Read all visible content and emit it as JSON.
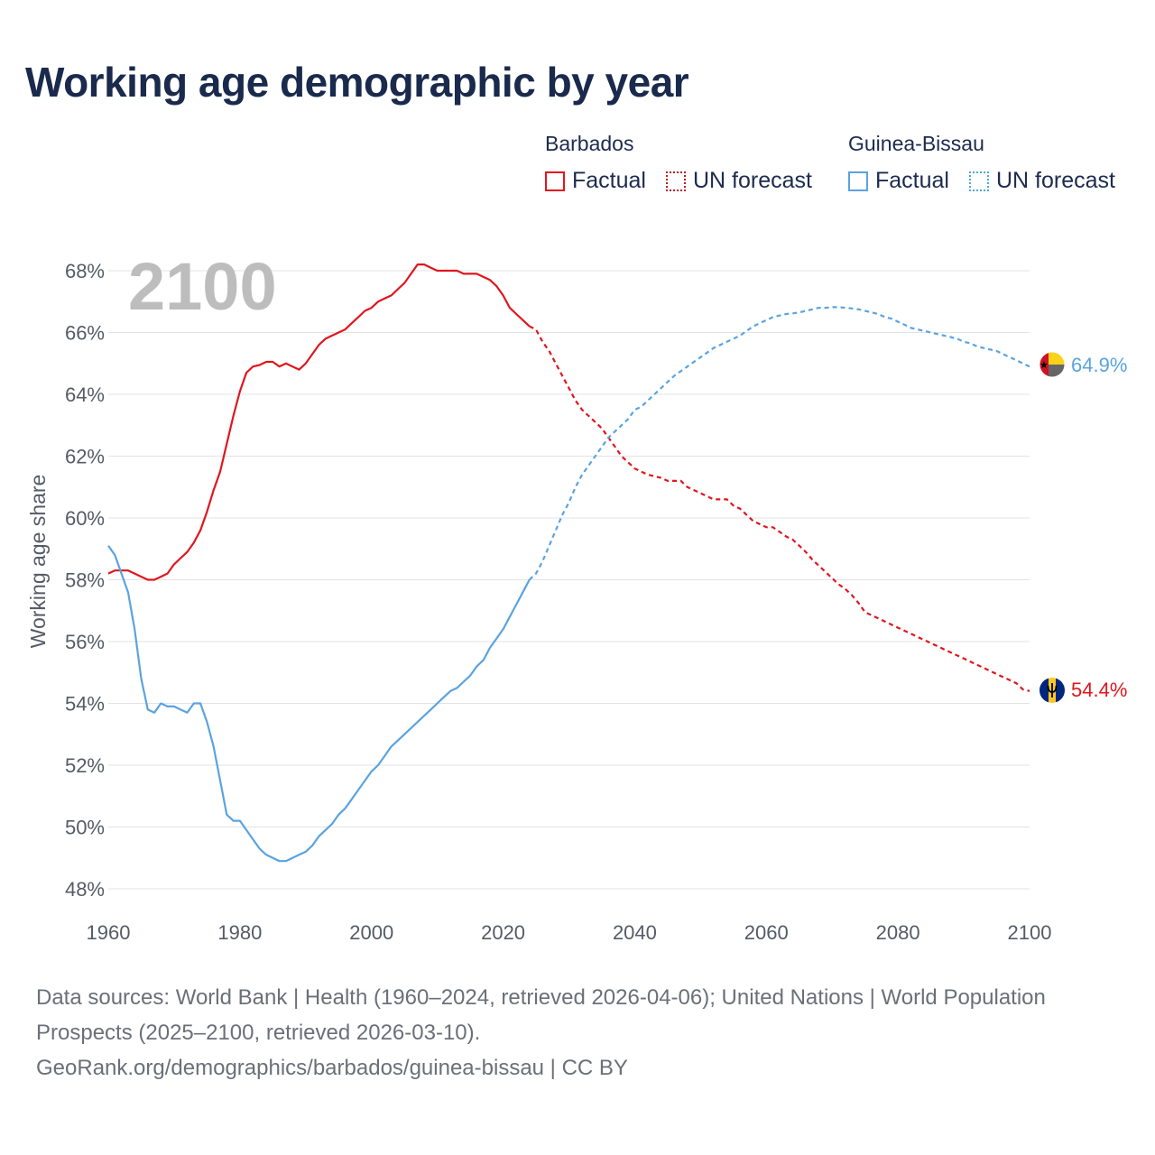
{
  "title": "Working age demographic by year",
  "legend": {
    "groups": [
      {
        "name": "Barbados",
        "factual_label": "Factual",
        "forecast_label": "UN forecast"
      },
      {
        "name": "Guinea-Bissau",
        "factual_label": "Factual",
        "forecast_label": "UN forecast"
      }
    ]
  },
  "chart_data": {
    "type": "line",
    "title": "Working age demographic by year",
    "current_year_label": "2100",
    "ylabel": "Working age share",
    "xlabel": "",
    "xlim": [
      1960,
      2100
    ],
    "ylim": [
      48,
      68
    ],
    "x_ticks": [
      "1960",
      "1980",
      "2000",
      "2020",
      "2040",
      "2060",
      "2080",
      "2100"
    ],
    "y_ticks": [
      "48%",
      "50%",
      "52%",
      "54%",
      "56%",
      "58%",
      "60%",
      "62%",
      "64%",
      "66%",
      "68%"
    ],
    "factual_end_year": 2024,
    "series": [
      {
        "name": "Barbados",
        "color": "#e0161e",
        "end_label": "54.4%",
        "points": [
          [
            1960,
            58.2
          ],
          [
            1961,
            58.3
          ],
          [
            1962,
            58.3
          ],
          [
            1963,
            58.3
          ],
          [
            1964,
            58.2
          ],
          [
            1965,
            58.1
          ],
          [
            1966,
            58.0
          ],
          [
            1967,
            58.0
          ],
          [
            1968,
            58.1
          ],
          [
            1969,
            58.2
          ],
          [
            1970,
            58.5
          ],
          [
            1971,
            58.7
          ],
          [
            1972,
            58.9
          ],
          [
            1973,
            59.2
          ],
          [
            1974,
            59.6
          ],
          [
            1975,
            60.2
          ],
          [
            1976,
            60.9
          ],
          [
            1977,
            61.5
          ],
          [
            1978,
            62.4
          ],
          [
            1979,
            63.3
          ],
          [
            1980,
            64.1
          ],
          [
            1981,
            64.7
          ],
          [
            1982,
            64.9
          ],
          [
            1983,
            64.95
          ],
          [
            1984,
            65.05
          ],
          [
            1985,
            65.05
          ],
          [
            1986,
            64.9
          ],
          [
            1987,
            65.0
          ],
          [
            1988,
            64.9
          ],
          [
            1989,
            64.8
          ],
          [
            1990,
            65.0
          ],
          [
            1991,
            65.3
          ],
          [
            1992,
            65.6
          ],
          [
            1993,
            65.8
          ],
          [
            1994,
            65.9
          ],
          [
            1995,
            66.0
          ],
          [
            1996,
            66.1
          ],
          [
            1997,
            66.3
          ],
          [
            1998,
            66.5
          ],
          [
            1999,
            66.7
          ],
          [
            2000,
            66.8
          ],
          [
            2001,
            67.0
          ],
          [
            2002,
            67.1
          ],
          [
            2003,
            67.2
          ],
          [
            2004,
            67.4
          ],
          [
            2005,
            67.6
          ],
          [
            2006,
            67.9
          ],
          [
            2007,
            68.2
          ],
          [
            2008,
            68.2
          ],
          [
            2009,
            68.1
          ],
          [
            2010,
            68.0
          ],
          [
            2011,
            68.0
          ],
          [
            2012,
            68.0
          ],
          [
            2013,
            68.0
          ],
          [
            2014,
            67.9
          ],
          [
            2015,
            67.9
          ],
          [
            2016,
            67.9
          ],
          [
            2017,
            67.8
          ],
          [
            2018,
            67.7
          ],
          [
            2019,
            67.5
          ],
          [
            2020,
            67.2
          ],
          [
            2021,
            66.8
          ],
          [
            2022,
            66.6
          ],
          [
            2023,
            66.4
          ],
          [
            2024,
            66.2
          ],
          [
            2025,
            66.1
          ],
          [
            2026,
            65.7
          ],
          [
            2027,
            65.4
          ],
          [
            2028,
            65.0
          ],
          [
            2029,
            64.6
          ],
          [
            2030,
            64.2
          ],
          [
            2031,
            63.8
          ],
          [
            2032,
            63.5
          ],
          [
            2033,
            63.3
          ],
          [
            2034,
            63.1
          ],
          [
            2035,
            62.9
          ],
          [
            2036,
            62.6
          ],
          [
            2037,
            62.3
          ],
          [
            2038,
            62.0
          ],
          [
            2039,
            61.8
          ],
          [
            2040,
            61.6
          ],
          [
            2041,
            61.5
          ],
          [
            2042,
            61.4
          ],
          [
            2043,
            61.35
          ],
          [
            2044,
            61.3
          ],
          [
            2045,
            61.2
          ],
          [
            2046,
            61.2
          ],
          [
            2047,
            61.2
          ],
          [
            2048,
            61.0
          ],
          [
            2049,
            60.9
          ],
          [
            2050,
            60.8
          ],
          [
            2051,
            60.7
          ],
          [
            2052,
            60.6
          ],
          [
            2053,
            60.6
          ],
          [
            2054,
            60.6
          ],
          [
            2055,
            60.4
          ],
          [
            2056,
            60.3
          ],
          [
            2057,
            60.1
          ],
          [
            2058,
            59.9
          ],
          [
            2059,
            59.8
          ],
          [
            2060,
            59.7
          ],
          [
            2061,
            59.7
          ],
          [
            2062,
            59.55
          ],
          [
            2063,
            59.4
          ],
          [
            2064,
            59.3
          ],
          [
            2065,
            59.1
          ],
          [
            2066,
            58.9
          ],
          [
            2067,
            58.65
          ],
          [
            2068,
            58.45
          ],
          [
            2069,
            58.25
          ],
          [
            2070,
            58.05
          ],
          [
            2071,
            57.85
          ],
          [
            2072,
            57.7
          ],
          [
            2073,
            57.5
          ],
          [
            2074,
            57.25
          ],
          [
            2075,
            56.95
          ],
          [
            2076,
            56.85
          ],
          [
            2077,
            56.75
          ],
          [
            2078,
            56.65
          ],
          [
            2079,
            56.55
          ],
          [
            2080,
            56.45
          ],
          [
            2081,
            56.35
          ],
          [
            2082,
            56.25
          ],
          [
            2083,
            56.15
          ],
          [
            2084,
            56.05
          ],
          [
            2085,
            55.95
          ],
          [
            2086,
            55.85
          ],
          [
            2087,
            55.75
          ],
          [
            2088,
            55.65
          ],
          [
            2089,
            55.55
          ],
          [
            2090,
            55.45
          ],
          [
            2091,
            55.35
          ],
          [
            2092,
            55.25
          ],
          [
            2093,
            55.15
          ],
          [
            2094,
            55.05
          ],
          [
            2095,
            54.95
          ],
          [
            2096,
            54.85
          ],
          [
            2097,
            54.75
          ],
          [
            2098,
            54.65
          ],
          [
            2099,
            54.45
          ],
          [
            2100,
            54.4
          ]
        ]
      },
      {
        "name": "Guinea-Bissau",
        "color": "#5aa3e0",
        "end_label": "64.9%",
        "points": [
          [
            1960,
            59.1
          ],
          [
            1961,
            58.8
          ],
          [
            1962,
            58.2
          ],
          [
            1963,
            57.6
          ],
          [
            1964,
            56.4
          ],
          [
            1965,
            54.8
          ],
          [
            1966,
            53.8
          ],
          [
            1967,
            53.7
          ],
          [
            1968,
            54.0
          ],
          [
            1969,
            53.9
          ],
          [
            1970,
            53.9
          ],
          [
            1971,
            53.8
          ],
          [
            1972,
            53.7
          ],
          [
            1973,
            54.0
          ],
          [
            1974,
            54.0
          ],
          [
            1975,
            53.4
          ],
          [
            1976,
            52.6
          ],
          [
            1977,
            51.5
          ],
          [
            1978,
            50.4
          ],
          [
            1979,
            50.2
          ],
          [
            1980,
            50.2
          ],
          [
            1981,
            49.9
          ],
          [
            1982,
            49.6
          ],
          [
            1983,
            49.3
          ],
          [
            1984,
            49.1
          ],
          [
            1985,
            49.0
          ],
          [
            1986,
            48.9
          ],
          [
            1987,
            48.9
          ],
          [
            1988,
            49.0
          ],
          [
            1989,
            49.1
          ],
          [
            1990,
            49.2
          ],
          [
            1991,
            49.4
          ],
          [
            1992,
            49.7
          ],
          [
            1993,
            49.9
          ],
          [
            1994,
            50.1
          ],
          [
            1995,
            50.4
          ],
          [
            1996,
            50.6
          ],
          [
            1997,
            50.9
          ],
          [
            1998,
            51.2
          ],
          [
            1999,
            51.5
          ],
          [
            2000,
            51.8
          ],
          [
            2001,
            52.0
          ],
          [
            2002,
            52.3
          ],
          [
            2003,
            52.6
          ],
          [
            2004,
            52.8
          ],
          [
            2005,
            53.0
          ],
          [
            2006,
            53.2
          ],
          [
            2007,
            53.4
          ],
          [
            2008,
            53.6
          ],
          [
            2009,
            53.8
          ],
          [
            2010,
            54.0
          ],
          [
            2011,
            54.2
          ],
          [
            2012,
            54.4
          ],
          [
            2013,
            54.5
          ],
          [
            2014,
            54.7
          ],
          [
            2015,
            54.9
          ],
          [
            2016,
            55.2
          ],
          [
            2017,
            55.4
          ],
          [
            2018,
            55.8
          ],
          [
            2019,
            56.1
          ],
          [
            2020,
            56.4
          ],
          [
            2021,
            56.8
          ],
          [
            2022,
            57.2
          ],
          [
            2023,
            57.6
          ],
          [
            2024,
            58.0
          ],
          [
            2025,
            58.2
          ],
          [
            2026,
            58.6
          ],
          [
            2027,
            59.1
          ],
          [
            2028,
            59.6
          ],
          [
            2029,
            60.1
          ],
          [
            2030,
            60.5
          ],
          [
            2031,
            61.0
          ],
          [
            2032,
            61.4
          ],
          [
            2033,
            61.7
          ],
          [
            2034,
            62.0
          ],
          [
            2035,
            62.3
          ],
          [
            2036,
            62.6
          ],
          [
            2037,
            62.8
          ],
          [
            2038,
            63.0
          ],
          [
            2039,
            63.2
          ],
          [
            2040,
            63.5
          ],
          [
            2041,
            63.6
          ],
          [
            2042,
            63.8
          ],
          [
            2043,
            64.0
          ],
          [
            2044,
            64.2
          ],
          [
            2045,
            64.4
          ],
          [
            2046,
            64.6
          ],
          [
            2047,
            64.75
          ],
          [
            2048,
            64.9
          ],
          [
            2049,
            65.05
          ],
          [
            2050,
            65.2
          ],
          [
            2051,
            65.35
          ],
          [
            2052,
            65.5
          ],
          [
            2053,
            65.6
          ],
          [
            2054,
            65.7
          ],
          [
            2055,
            65.8
          ],
          [
            2056,
            65.9
          ],
          [
            2057,
            66.05
          ],
          [
            2058,
            66.2
          ],
          [
            2059,
            66.3
          ],
          [
            2060,
            66.4
          ],
          [
            2061,
            66.5
          ],
          [
            2062,
            66.55
          ],
          [
            2063,
            66.6
          ],
          [
            2064,
            66.62
          ],
          [
            2065,
            66.65
          ],
          [
            2066,
            66.7
          ],
          [
            2067,
            66.75
          ],
          [
            2068,
            66.8
          ],
          [
            2069,
            66.8
          ],
          [
            2070,
            66.82
          ],
          [
            2071,
            66.82
          ],
          [
            2072,
            66.8
          ],
          [
            2073,
            66.78
          ],
          [
            2074,
            66.75
          ],
          [
            2075,
            66.7
          ],
          [
            2076,
            66.65
          ],
          [
            2077,
            66.6
          ],
          [
            2078,
            66.5
          ],
          [
            2079,
            66.45
          ],
          [
            2080,
            66.35
          ],
          [
            2081,
            66.25
          ],
          [
            2082,
            66.15
          ],
          [
            2083,
            66.1
          ],
          [
            2084,
            66.05
          ],
          [
            2085,
            66.0
          ],
          [
            2086,
            65.95
          ],
          [
            2087,
            65.9
          ],
          [
            2088,
            65.85
          ],
          [
            2089,
            65.8
          ],
          [
            2090,
            65.7
          ],
          [
            2091,
            65.65
          ],
          [
            2092,
            65.55
          ],
          [
            2093,
            65.5
          ],
          [
            2094,
            65.45
          ],
          [
            2095,
            65.4
          ],
          [
            2096,
            65.3
          ],
          [
            2097,
            65.2
          ],
          [
            2098,
            65.1
          ],
          [
            2099,
            65.0
          ],
          [
            2100,
            64.9
          ]
        ]
      }
    ]
  },
  "footer": {
    "sources": "Data sources: World Bank | Health (1960–2024, retrieved 2026-04-06); United Nations | World Population Prospects (2025–2100, retrieved 2026-03-10).",
    "link": "GeoRank.org/demographics/barbados/guinea-bissau | CC BY"
  }
}
